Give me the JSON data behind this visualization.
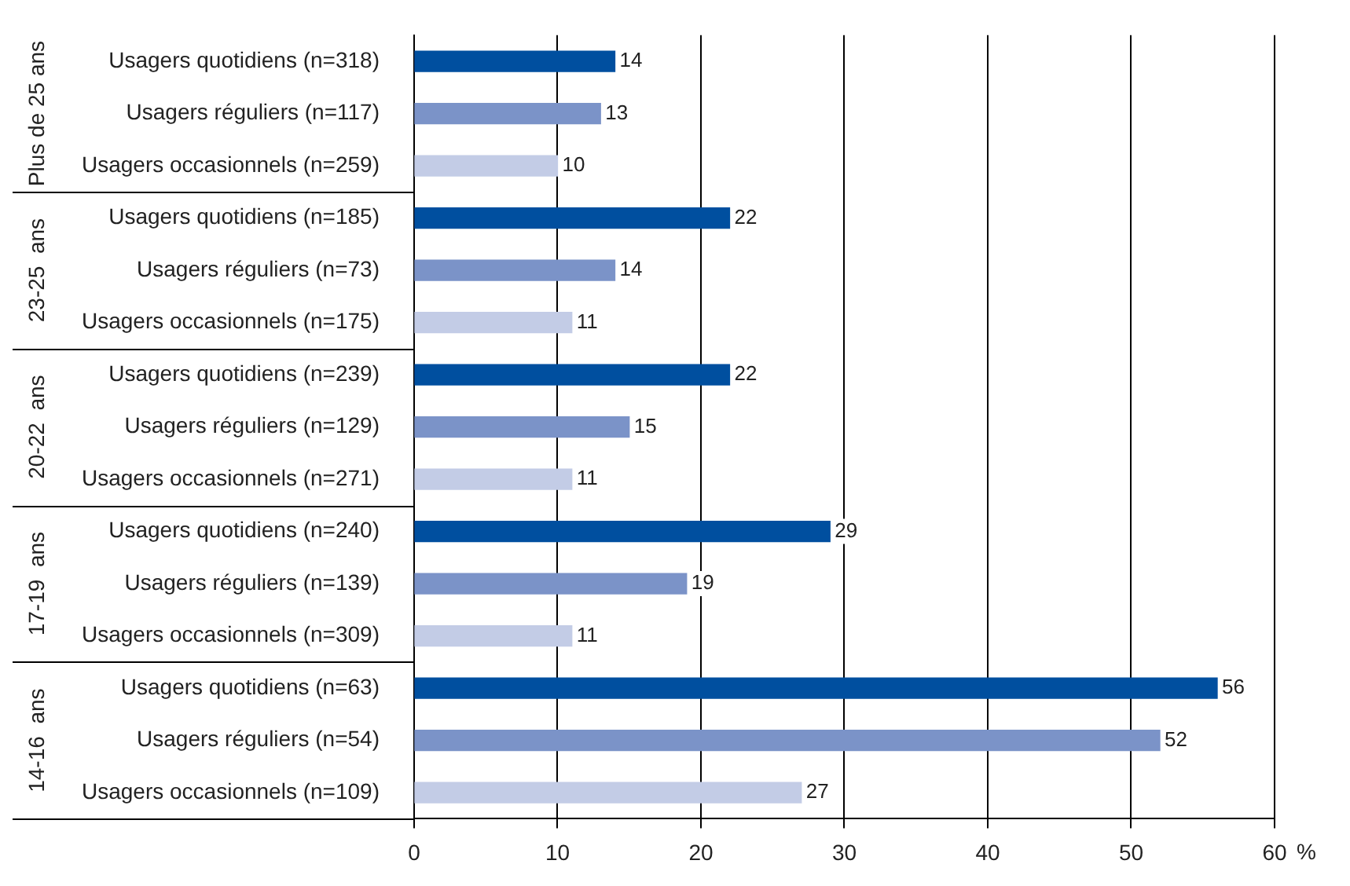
{
  "chart_data": {
    "type": "bar",
    "orientation": "horizontal",
    "categories": [
      "Usagers quotidiens (n=318)",
      "Usagers réguliers (n=117)",
      "Usagers occasionnels (n=259)",
      "Usagers quotidiens (n=185)",
      "Usagers réguliers (n=73)",
      "Usagers occasionnels (n=175)",
      "Usagers quotidiens (n=239)",
      "Usagers réguliers (n=129)",
      "Usagers occasionnels (n=271)",
      "Usagers quotidiens (n=240)",
      "Usagers réguliers (n=139)",
      "Usagers occasionnels (n=309)",
      "Usagers quotidiens (n=63)",
      "Usagers réguliers (n=54)",
      "Usagers occasionnels (n=109)"
    ],
    "values": [
      14,
      13,
      10,
      22,
      14,
      11,
      22,
      15,
      11,
      29,
      19,
      11,
      56,
      52,
      27
    ],
    "colors": [
      "#004f9f",
      "#7b93c8",
      "#c3cce6",
      "#004f9f",
      "#7b93c8",
      "#c3cce6",
      "#004f9f",
      "#7b93c8",
      "#c3cce6",
      "#004f9f",
      "#7b93c8",
      "#c3cce6",
      "#004f9f",
      "#7b93c8",
      "#c3cce6"
    ],
    "annotations": [
      "Plus de 25 ans",
      "23-25  ans",
      "20-22  ans",
      "17-19  ans",
      "14-16  ans"
    ],
    "xlabel": "%",
    "xlim": [
      0,
      60
    ],
    "xticks": [
      0,
      10,
      20,
      30,
      40,
      50,
      60
    ],
    "grid": "x",
    "data_labels": true,
    "legend": false
  }
}
